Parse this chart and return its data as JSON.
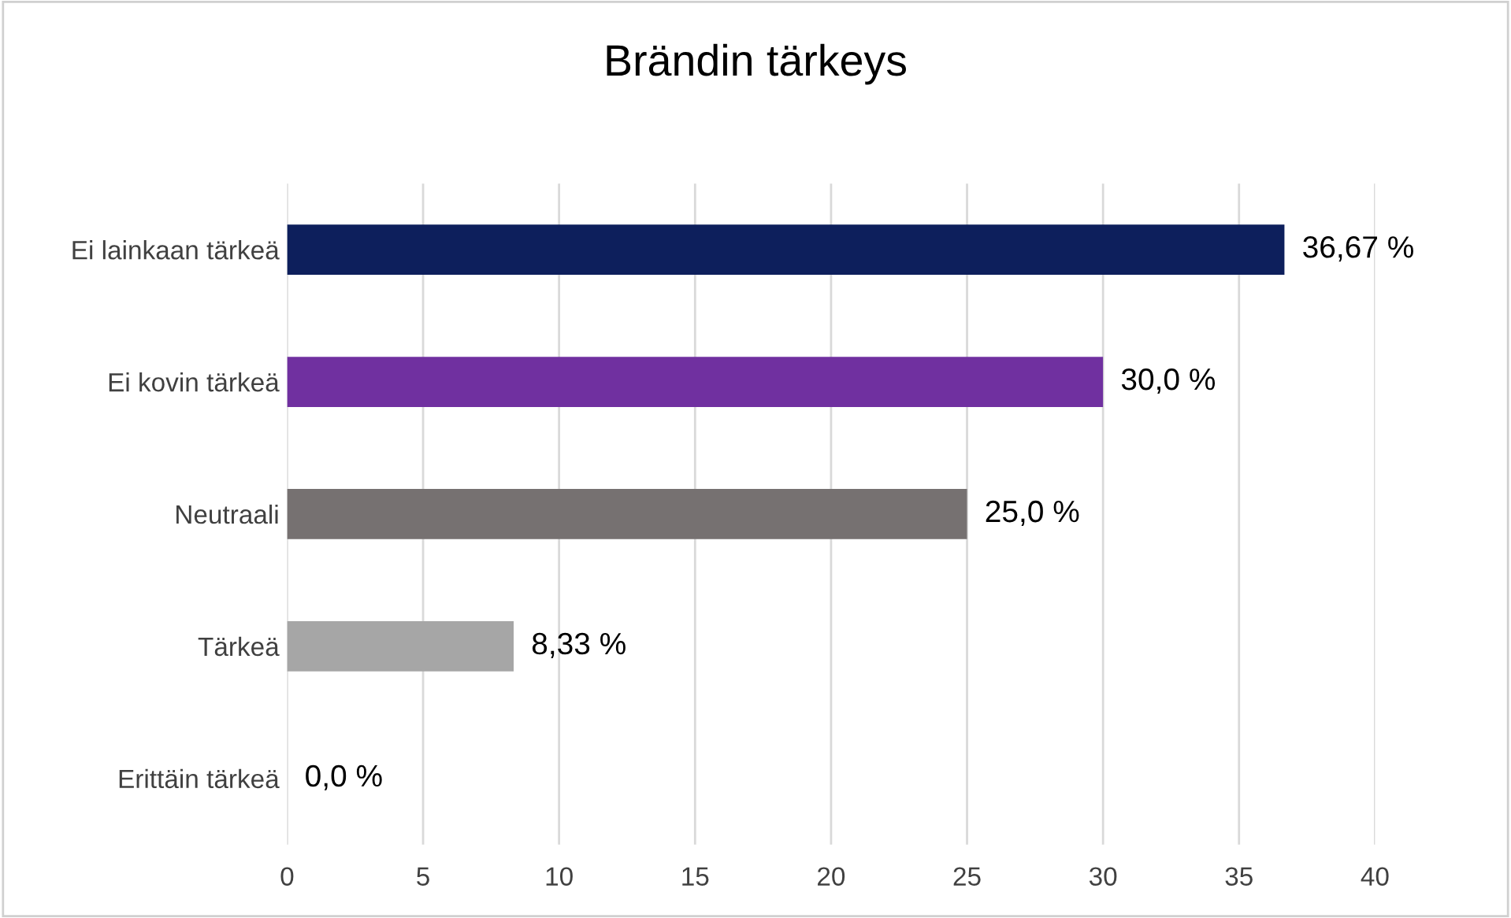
{
  "chart_data": {
    "type": "bar",
    "orientation": "horizontal",
    "title": "Brändin tärkeys",
    "categories": [
      "Ei lainkaan tärkeä",
      "Ei kovin tärkeä",
      "Neutraali",
      "Tärkeä",
      "Erittäin tärkeä"
    ],
    "values": [
      36.67,
      30.0,
      25.0,
      8.33,
      0.0
    ],
    "colors": [
      "#0d1f5c",
      "#7030a0",
      "#767171",
      "#a6a6a6",
      "#d9d9d9"
    ],
    "value_labels": [
      "36,67 %",
      "30,0 %",
      "25,0 %",
      "8,33 %",
      "0,0 %"
    ],
    "xlim": [
      0,
      40
    ],
    "xticks": [
      0,
      5,
      10,
      15,
      20,
      25,
      30,
      35,
      40
    ],
    "grid": "x",
    "legend": false
  }
}
